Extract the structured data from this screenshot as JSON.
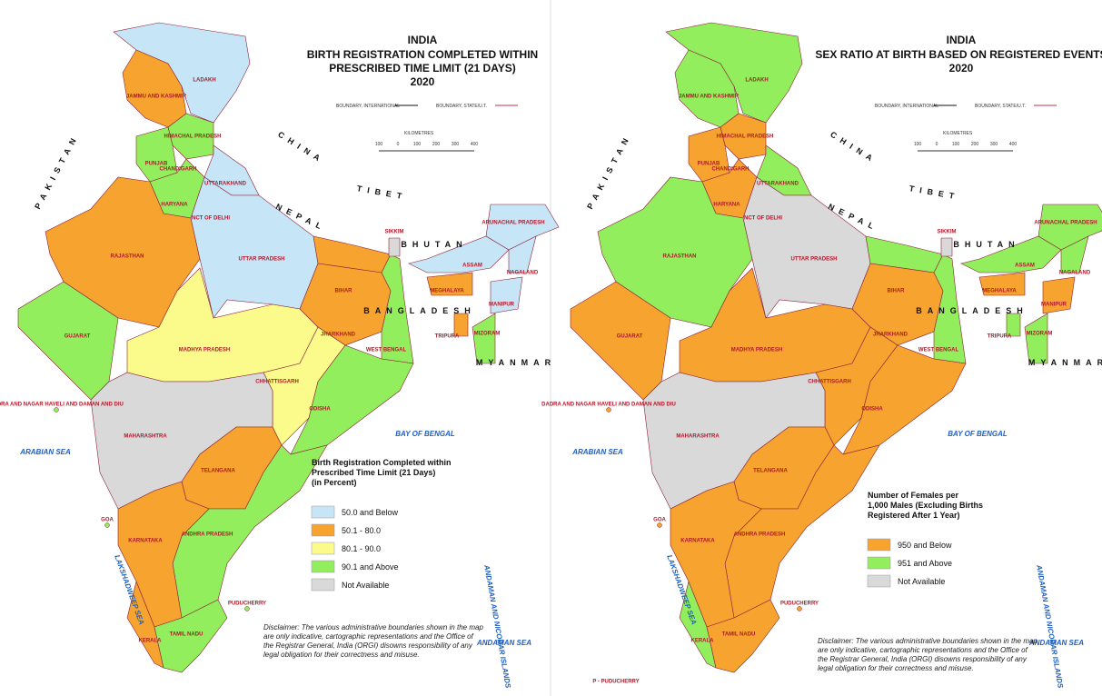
{
  "maps": [
    {
      "title": {
        "country": "INDIA",
        "lines": [
          "BIRTH REGISTRATION COMPLETED WITHIN",
          "PRESCRIBED TIME LIMIT (21 DAYS)"
        ],
        "year": "2020"
      },
      "boundary_labels": [
        "BOUNDARY, INTERNATIONAL",
        "BOUNDARY, STATE/U.T."
      ],
      "scale": {
        "title": "KILOMETRES",
        "ticks": [
          "100",
          "0",
          "100",
          "200",
          "300",
          "400"
        ]
      },
      "legend": {
        "title": [
          "Birth Registration Completed within",
          "Prescribed Time Limit (21 Days)",
          "(in Percent)"
        ],
        "items": [
          {
            "label": "50.0 and Below",
            "color": "#c6e6f7"
          },
          {
            "label": "50.1 - 80.0",
            "color": "#f6a330"
          },
          {
            "label": "80.1 - 90.0",
            "color": "#fbfb8c"
          },
          {
            "label": "90.1 and Above",
            "color": "#92ee5c"
          },
          {
            "label": "Not Available",
            "color": "#d9d9d9"
          }
        ]
      },
      "regions": [
        {
          "name": "LADAKH",
          "color": "#c6e6f7"
        },
        {
          "name": "JAMMU AND KASHMIR",
          "color": "#f6a330"
        },
        {
          "name": "HIMACHAL PRADESH",
          "color": "#92ee5c"
        },
        {
          "name": "PUNJAB",
          "color": "#92ee5c"
        },
        {
          "name": "CHANDIGARH",
          "color": "#92ee5c"
        },
        {
          "name": "UTTARAKHAND",
          "color": "#c6e6f7"
        },
        {
          "name": "HARYANA",
          "color": "#92ee5c"
        },
        {
          "name": "NCT OF DELHI",
          "color": "#c6e6f7"
        },
        {
          "name": "RAJASTHAN",
          "color": "#f6a330"
        },
        {
          "name": "UTTAR PRADESH",
          "color": "#c6e6f7"
        },
        {
          "name": "GUJARAT",
          "color": "#92ee5c"
        },
        {
          "name": "MADHYA PRADESH",
          "color": "#fbfb8c"
        },
        {
          "name": "BIHAR",
          "color": "#f6a330"
        },
        {
          "name": "JHARKHAND",
          "color": "#f6a330"
        },
        {
          "name": "WEST BENGAL",
          "color": "#92ee5c"
        },
        {
          "name": "CHHATTISGARH",
          "color": "#fbfb8c"
        },
        {
          "name": "ODISHA",
          "color": "#92ee5c"
        },
        {
          "name": "MAHARASHTRA",
          "color": "#d9d9d9"
        },
        {
          "name": "TELANGANA",
          "color": "#f6a330"
        },
        {
          "name": "ANDHRA PRADESH",
          "color": "#92ee5c"
        },
        {
          "name": "KARNATAKA",
          "color": "#f6a330"
        },
        {
          "name": "GOA",
          "color": "#92ee5c"
        },
        {
          "name": "KERALA",
          "color": "#f6a330"
        },
        {
          "name": "TAMIL NADU",
          "color": "#92ee5c"
        },
        {
          "name": "SIKKIM",
          "color": "#d9d9d9"
        },
        {
          "name": "ARUNACHAL PRADESH",
          "color": "#c6e6f7"
        },
        {
          "name": "ASSAM",
          "color": "#c6e6f7"
        },
        {
          "name": "NAGALAND",
          "color": "#c6e6f7"
        },
        {
          "name": "MEGHALAYA",
          "color": "#f6a330"
        },
        {
          "name": "MANIPUR",
          "color": "#c6e6f7"
        },
        {
          "name": "MIZORAM",
          "color": "#92ee5c"
        },
        {
          "name": "TRIPURA",
          "color": "#f6a330"
        },
        {
          "name": "PUDUCHERRY",
          "color": "#92ee5c"
        },
        {
          "name": "DADRA AND NAGAR HAVELI AND DAMAN AND DIU",
          "color": "#92ee5c"
        }
      ],
      "places": [
        "PAKISTAN",
        "CHINA",
        "NEPAL",
        "TIBET",
        "BHUTAN",
        "BANGLADESH",
        "MYANMAR"
      ],
      "seas": [
        "BAY OF BENGAL",
        "ARABIAN SEA",
        "LAKSHADWEEP SEA",
        "ANDAMAN SEA",
        "ANDAMAN AND NICOBAR ISLANDS"
      ],
      "disclaimer": [
        "Disclaimer: The various administrative boundaries shown in the map",
        "are only indicative, cartographic representations and the Office of",
        "the Registrar General, India (ORGI) disowns responsibility of any",
        "legal obligation for their correctness and misuse."
      ]
    },
    {
      "title": {
        "country": "INDIA",
        "lines": [
          "SEX RATIO AT BIRTH BASED ON REGISTERED EVENTS"
        ],
        "year": "2020"
      },
      "boundary_labels": [
        "BOUNDARY, INTERNATIONAL",
        "BOUNDARY, STATE/U.T."
      ],
      "scale": {
        "title": "KILOMETRES",
        "ticks": [
          "100",
          "0",
          "100",
          "200",
          "300",
          "400"
        ]
      },
      "legend": {
        "title": [
          "Number of Females per",
          "1,000 Males (Excluding Births",
          "Registered After 1 Year)"
        ],
        "items": [
          {
            "label": "950 and Below",
            "color": "#f6a330"
          },
          {
            "label": "951 and Above",
            "color": "#92ee5c"
          },
          {
            "label": "Not Available",
            "color": "#d9d9d9"
          }
        ]
      },
      "regions": [
        {
          "name": "LADAKH",
          "color": "#92ee5c"
        },
        {
          "name": "JAMMU AND KASHMIR",
          "color": "#92ee5c"
        },
        {
          "name": "HIMACHAL PRADESH",
          "color": "#f6a330"
        },
        {
          "name": "PUNJAB",
          "color": "#f6a330"
        },
        {
          "name": "CHANDIGARH",
          "color": "#f6a330"
        },
        {
          "name": "UTTARAKHAND",
          "color": "#92ee5c"
        },
        {
          "name": "HARYANA",
          "color": "#f6a330"
        },
        {
          "name": "NCT OF DELHI",
          "color": "#f6a330"
        },
        {
          "name": "RAJASTHAN",
          "color": "#92ee5c"
        },
        {
          "name": "UTTAR PRADESH",
          "color": "#d9d9d9"
        },
        {
          "name": "GUJARAT",
          "color": "#f6a330"
        },
        {
          "name": "MADHYA PRADESH",
          "color": "#f6a330"
        },
        {
          "name": "BIHAR",
          "color": "#92ee5c"
        },
        {
          "name": "JHARKHAND",
          "color": "#f6a330"
        },
        {
          "name": "WEST BENGAL",
          "color": "#92ee5c"
        },
        {
          "name": "CHHATTISGARH",
          "color": "#f6a330"
        },
        {
          "name": "ODISHA",
          "color": "#f6a330"
        },
        {
          "name": "MAHARASHTRA",
          "color": "#d9d9d9"
        },
        {
          "name": "TELANGANA",
          "color": "#f6a330"
        },
        {
          "name": "ANDHRA PRADESH",
          "color": "#f6a330"
        },
        {
          "name": "KARNATAKA",
          "color": "#f6a330"
        },
        {
          "name": "GOA",
          "color": "#f6a330"
        },
        {
          "name": "KERALA",
          "color": "#92ee5c"
        },
        {
          "name": "TAMIL NADU",
          "color": "#f6a330"
        },
        {
          "name": "SIKKIM",
          "color": "#d9d9d9"
        },
        {
          "name": "ARUNACHAL PRADESH",
          "color": "#92ee5c"
        },
        {
          "name": "ASSAM",
          "color": "#92ee5c"
        },
        {
          "name": "NAGALAND",
          "color": "#92ee5c"
        },
        {
          "name": "MEGHALAYA",
          "color": "#f6a330"
        },
        {
          "name": "MANIPUR",
          "color": "#f6a330"
        },
        {
          "name": "MIZORAM",
          "color": "#92ee5c"
        },
        {
          "name": "TRIPURA",
          "color": "#92ee5c"
        },
        {
          "name": "PUDUCHERRY",
          "color": "#f6a330"
        },
        {
          "name": "DADRA AND NAGAR HAVELI AND DAMAN AND DIU",
          "color": "#f6a330"
        }
      ],
      "places": [
        "PAKISTAN",
        "CHINA",
        "NEPAL",
        "TIBET",
        "BHUTAN",
        "BANGLADESH",
        "MYANMAR"
      ],
      "seas": [
        "BAY OF BENGAL",
        "ARABIAN SEA",
        "LAKSHADWEEP SEA",
        "ANDAMAN SEA",
        "ANDAMAN AND NICOBAR ISLANDS"
      ],
      "footnote": "P - PUDUCHERRY",
      "disclaimer": [
        "Disclaimer: The various administrative boundaries shown in the map",
        "are only indicative, cartographic representations and the Office of",
        "the Registrar General, India (ORGI) disowns responsibility of any",
        "legal obligation for their correctness and misuse."
      ]
    }
  ]
}
